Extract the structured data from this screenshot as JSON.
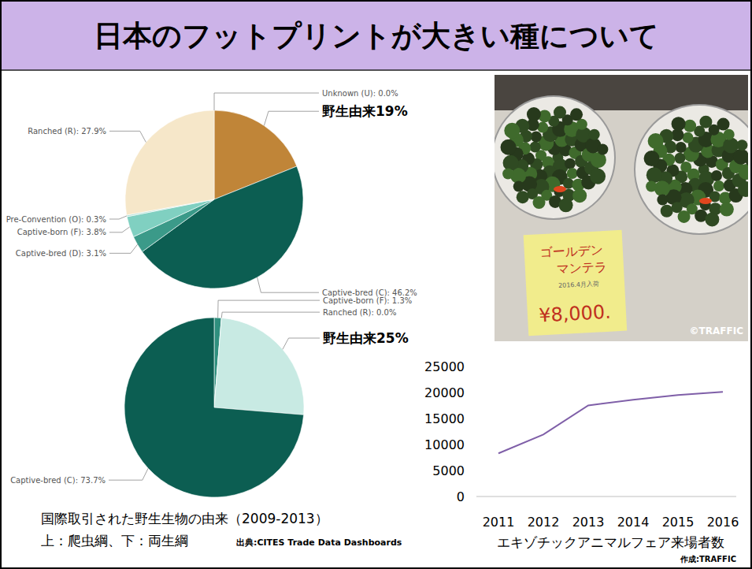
{
  "slide": {
    "title": "日本のフットプリントが大きい種について"
  },
  "chart_data": [
    {
      "type": "pie",
      "values": [
        0.0,
        19,
        46.2,
        3.1,
        3.8,
        0.3,
        27.9
      ],
      "value_labels": [
        "Unknown (U): 0.0%",
        "野生由来19%",
        "Captive-bred (C): 46.2%",
        "Captive-bred (D): 3.1%",
        "Captive-born (F): 3.8%",
        "Pre-Convention (O): 0.3%",
        "Ranched (R): 27.9%"
      ],
      "colors": [
        "#e0d2b0",
        "#c08538",
        "#0c5e52",
        "#3b9a89",
        "#80d0c1",
        "#b5e3da",
        "#f6e7c9"
      ],
      "data_labels": true
    },
    {
      "type": "pie",
      "values": [
        1.3,
        0.0,
        25,
        73.7
      ],
      "value_labels": [
        "Captive-born (F): 1.3%",
        "Ranched (R): 0.0%",
        "野生由来25%",
        "Captive-bred (C): 73.7%"
      ],
      "colors": [
        "#2f8f7e",
        "#f6e7c9",
        "#c8eae3",
        "#0c5e52"
      ],
      "data_labels": true
    },
    {
      "type": "line",
      "categories": [
        "2011",
        "2012",
        "2013",
        "2014",
        "2015",
        "2016"
      ],
      "values": [
        8300,
        11900,
        17500,
        18600,
        19500,
        20100
      ],
      "color": "#7f5fa8",
      "ylim": [
        0,
        25000
      ],
      "yticks": [
        0,
        5000,
        10000,
        15000,
        20000,
        25000
      ],
      "grid": false,
      "xlabel": "エキゾチックアニマルフェア来場者数",
      "source": "作成:TRAFFIC"
    }
  ],
  "caption": {
    "lines": [
      "国際取引された野生生物の由来（2009-2013）",
      "上：爬虫綱、下：両生綱"
    ],
    "source": "出典:CITES Trade Data Dashboards"
  },
  "photo": {
    "note_lines": [
      "ゴールデン",
      "マンテラ",
      "2016.4月入荷"
    ],
    "price": "¥8,000.",
    "credit": "©TRAFFIC"
  }
}
